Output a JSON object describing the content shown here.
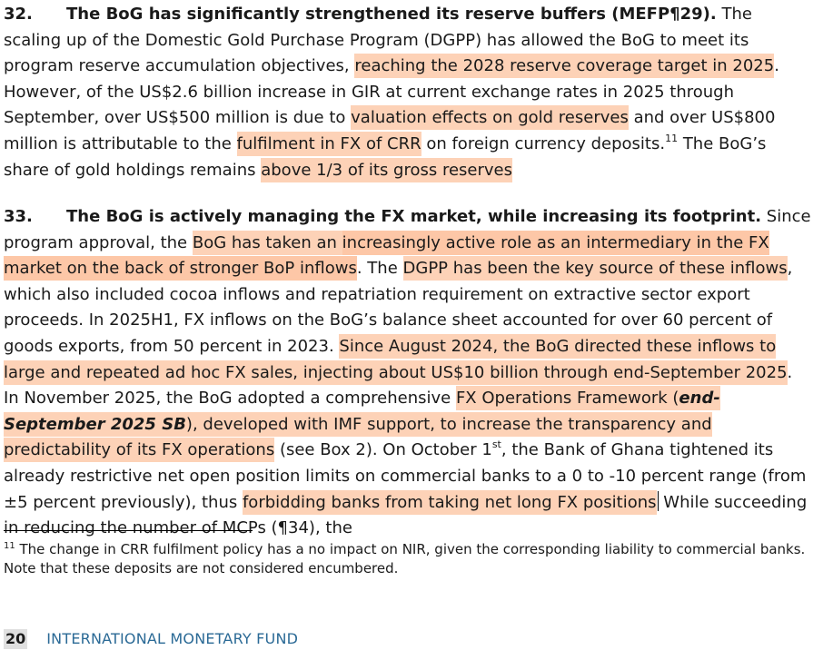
{
  "p32": {
    "number": "32.",
    "lead": "The BoG has significantly strengthened its reserve buffers (MEFP¶29).",
    "t1": " The scaling up of the Domestic Gold Purchase Program (DGPP) has allowed the BoG to meet its program reserve accumulation objectives, ",
    "h1": "reaching the 2028 reserve coverage target in 2025",
    "t2": ". However, of the US$2.6 billion increase in GIR at current exchange rates in 2025 through September, over US$500 million is due to ",
    "h2": "valuation effects on gold reserves",
    "t3": " and over US$800 million is attributable to the ",
    "h3": "fulfilment in FX of CRR",
    "t4": " on foreign currency deposits.",
    "fn_ref": "11",
    "t5": " The BoG’s share of gold holdings remains ",
    "h4": "above 1/3 of its gross reserves"
  },
  "p33": {
    "number": "33.",
    "lead": "The BoG is actively managing the FX market, while increasing its footprint.",
    "t1": " Since program approval, the ",
    "h1a": "BoG has taken an ",
    "h1b": "increasingly active role as an intermediary in the FX market on the back of stronger BoP inflows",
    "t2": ". The ",
    "h2": "DGPP has been the key source of these inflows",
    "t3": ", which also included cocoa inflows and repatriation requirement on extractive sector export proceeds. In 2025H1, FX inflows on the BoG’s balance sheet accounted for over 60 percent of goods exports, from 50 percent in 2023. ",
    "h3": "Since August 2024, the BoG directed these inflows to large and repeated ad hoc FX sales, injecting about US$10 billion through end-September 2025",
    "t4": ". In November 2025, the BoG adopted a comprehensive ",
    "h4a": "FX Operations Framework (",
    "h4b": "end-September 2025 SB",
    "h4c": "), developed with IMF support, to increase the transparency and predictability of its FX operations",
    "t5": " (see Box 2). On October 1",
    "sup": "st",
    "t6": ", the Bank of Ghana tightened its already restrictive net open position limits on commercial banks to a 0 to -10 percent range (from ±5 percent previously), thus ",
    "h5": "forbidding banks from taking net long FX positions",
    "t7": " While succeeding in reducing the number of MCPs (¶34), the"
  },
  "footnote": {
    "ref": "11",
    "text": " The change in CRR fulfilment policy has a no impact on NIR, given the corresponding liability to commercial banks. Note that these deposits are not considered encumbered."
  },
  "footer": {
    "page_number": "20",
    "publisher": "INTERNATIONAL MONETARY FUND"
  },
  "highlight_color": "#fdd2b7"
}
